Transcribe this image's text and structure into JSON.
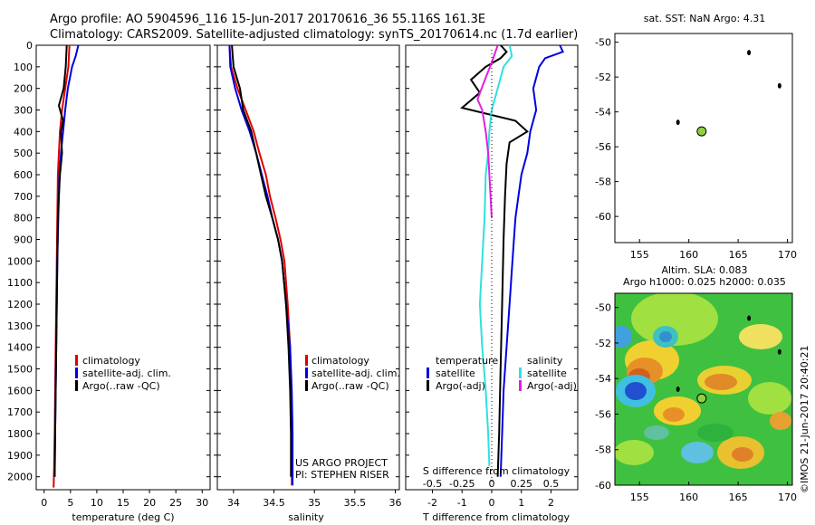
{
  "header": {
    "line1": "Argo profile: AO 5904596_116 15-Jun-2017 20170616_36 55.116S 161.3E",
    "line2": "Climatology: CARS2009. Satellite-adjusted climatology: synTS_20170614.nc (1.7d earlier)"
  },
  "colors": {
    "climatology": "#e00000",
    "satellite": "#0000e0",
    "argo": "#000000",
    "sal_satellite": "#30e0e0",
    "sal_argo": "#e020e0",
    "float_marker": "#90d040"
  },
  "depth_ticks": [
    0,
    100,
    200,
    300,
    400,
    500,
    600,
    700,
    800,
    900,
    1000,
    1100,
    1200,
    1300,
    1400,
    1500,
    1600,
    1700,
    1800,
    1900,
    2000
  ],
  "chart_data": [
    {
      "type": "line",
      "id": "temperature",
      "xlabel": "temperature (deg C)",
      "xlim": [
        -1.5,
        31.5
      ],
      "xticks": [
        0,
        5,
        10,
        15,
        20,
        25,
        30
      ],
      "ylim": [
        0,
        2060
      ],
      "y_inverted": true,
      "legend": [
        "climatology",
        "satellite-adj. clim.",
        "Argo(..raw -QC)"
      ],
      "series": [
        {
          "name": "climatology",
          "color": "#e00000",
          "x": [
            4.8,
            4.6,
            4.0,
            3.4,
            3.0,
            2.8,
            2.6,
            2.5,
            2.4,
            2.3,
            2.2,
            2.1,
            2.0,
            1.9,
            1.8
          ],
          "y": [
            0,
            100,
            200,
            300,
            400,
            500,
            600,
            800,
            1000,
            1200,
            1400,
            1600,
            1800,
            1950,
            2050
          ]
        },
        {
          "name": "satellite-adj. clim.",
          "color": "#0000e0",
          "x": [
            6.5,
            6.0,
            5.3,
            4.5,
            4.0,
            3.6,
            3.2,
            2.9,
            2.7,
            2.5,
            2.4,
            2.3,
            2.2,
            2.1,
            2.0
          ],
          "y": [
            0,
            50,
            100,
            200,
            300,
            400,
            500,
            600,
            800,
            1000,
            1200,
            1400,
            1600,
            1800,
            2000
          ]
        },
        {
          "name": "Argo(..raw -QC)",
          "color": "#000000",
          "x": [
            4.3,
            4.1,
            3.7,
            2.8,
            3.6,
            3.2,
            3.4,
            3.0,
            2.8,
            2.6,
            2.5,
            2.4,
            2.3,
            2.2,
            2.1,
            2.0
          ],
          "y": [
            0,
            100,
            200,
            280,
            350,
            400,
            500,
            600,
            700,
            800,
            1000,
            1200,
            1400,
            1600,
            1800,
            2000
          ]
        }
      ]
    },
    {
      "type": "line",
      "id": "salinity",
      "xlabel": "salinity",
      "xlim": [
        33.8,
        36.05
      ],
      "xticks": [
        34,
        34.5,
        35,
        35.5,
        36
      ],
      "ylim": [
        0,
        2060
      ],
      "y_inverted": true,
      "legend": [
        "climatology",
        "satellite-adj. clim.",
        "Argo(..raw -QC)"
      ],
      "annotation": [
        "US ARGO PROJECT",
        "PI: STEPHEN RISER"
      ],
      "series": [
        {
          "name": "climatology",
          "color": "#e00000",
          "x": [
            33.95,
            33.97,
            34.05,
            34.15,
            34.25,
            34.32,
            34.4,
            34.45,
            34.52,
            34.58,
            34.63,
            34.67,
            34.7,
            34.71,
            34.72,
            34.72
          ],
          "y": [
            0,
            100,
            200,
            300,
            400,
            500,
            600,
            700,
            800,
            900,
            1000,
            1200,
            1400,
            1600,
            1800,
            2040
          ]
        },
        {
          "name": "satellite-adj. clim.",
          "color": "#0000e0",
          "x": [
            33.95,
            33.96,
            34.02,
            34.1,
            34.2,
            34.28,
            34.35,
            34.42,
            34.48,
            34.55,
            34.6,
            34.65,
            34.7,
            34.72,
            34.73,
            34.73
          ],
          "y": [
            0,
            100,
            200,
            300,
            400,
            500,
            600,
            700,
            800,
            900,
            1000,
            1200,
            1400,
            1600,
            1800,
            2040
          ]
        },
        {
          "name": "Argo(..raw -QC)",
          "color": "#000000",
          "x": [
            33.98,
            34.0,
            34.08,
            34.12,
            34.22,
            34.28,
            34.34,
            34.4,
            34.48,
            34.55,
            34.6,
            34.65,
            34.68,
            34.7,
            34.71,
            34.71
          ],
          "y": [
            0,
            100,
            200,
            300,
            400,
            500,
            600,
            700,
            800,
            900,
            1000,
            1200,
            1400,
            1600,
            1800,
            2000
          ]
        }
      ]
    },
    {
      "type": "line",
      "id": "difference",
      "xlabel_bottom": "T difference from climatology",
      "xlabel_top": "S difference from climatology",
      "t_xlim": [
        -2.9,
        2.9
      ],
      "t_xticks": [
        -2,
        -1,
        0,
        1,
        2
      ],
      "s_xticks": [
        -0.5,
        -0.25,
        0,
        0.25,
        0.5
      ],
      "s_to_t_scale": 4,
      "ylim": [
        0,
        2060
      ],
      "y_inverted": true,
      "legend_titles": [
        "temperature",
        "salinity"
      ],
      "legend_temperature": [
        "satellite",
        "Argo(-adj)"
      ],
      "legend_salinity": [
        "satellite",
        "Argo(-adj)"
      ],
      "series": [
        {
          "name": "temperature satellite",
          "color": "#0000e0",
          "axis": "T",
          "x": [
            2.3,
            2.4,
            1.8,
            1.6,
            1.4,
            1.5,
            1.3,
            1.2,
            1.0,
            0.9,
            0.8,
            0.7,
            0.6,
            0.5,
            0.4,
            0.35,
            0.3
          ],
          "y": [
            0,
            30,
            60,
            100,
            200,
            300,
            400,
            500,
            600,
            700,
            800,
            1000,
            1200,
            1400,
            1600,
            1800,
            2000
          ]
        },
        {
          "name": "temperature Argo(-adj)",
          "color": "#000000",
          "axis": "T",
          "x": [
            0.3,
            0.5,
            0.3,
            -0.2,
            -0.7,
            -0.4,
            -1.0,
            0.8,
            1.2,
            0.6,
            0.5,
            0.45,
            0.4,
            0.35,
            0.3,
            0.25,
            0.2
          ],
          "y": [
            0,
            30,
            60,
            100,
            160,
            220,
            290,
            350,
            400,
            450,
            550,
            700,
            900,
            1200,
            1500,
            1800,
            2000
          ]
        },
        {
          "name": "salinity satellite",
          "color": "#30e0e0",
          "axis": "S",
          "x": [
            0.15,
            0.17,
            0.1,
            0.05,
            0.0,
            -0.02,
            -0.03,
            -0.05,
            -0.06,
            -0.08,
            -0.1,
            -0.08,
            -0.05,
            -0.03,
            -0.02
          ],
          "y": [
            0,
            50,
            100,
            200,
            300,
            400,
            500,
            600,
            800,
            1000,
            1200,
            1400,
            1600,
            1800,
            1950
          ]
        },
        {
          "name": "salinity Argo(-adj)",
          "color": "#e020e0",
          "axis": "S",
          "x": [
            0.05,
            0.0,
            -0.05,
            -0.12,
            -0.08,
            -0.05,
            -0.03,
            -0.02,
            -0.01,
            0.0
          ],
          "y": [
            0,
            80,
            150,
            250,
            300,
            400,
            500,
            600,
            700,
            800
          ]
        }
      ]
    },
    {
      "type": "scatter",
      "id": "map_sst",
      "title": "sat. SST: NaN Argo: 4.31",
      "xlim": [
        152.5,
        170.5
      ],
      "ylim": [
        -61.5,
        -49.5
      ],
      "xticks": [
        155,
        160,
        165,
        170
      ],
      "yticks": [
        -50,
        -52,
        -54,
        -56,
        -58,
        -60
      ],
      "float_position": {
        "lon": 161.3,
        "lat": -55.116
      },
      "land_specks": [
        {
          "lon": 166.1,
          "lat": -50.6
        },
        {
          "lon": 169.2,
          "lat": -52.5
        },
        {
          "lon": 158.9,
          "lat": -54.6
        }
      ]
    },
    {
      "type": "heatmap",
      "id": "map_sla",
      "title": [
        "Altim. SLA: 0.083",
        "Argo h1000: 0.025 h2000: 0.035"
      ],
      "xlim": [
        152.5,
        170.5
      ],
      "ylim": [
        -60.0,
        -49.2
      ],
      "xticks": [
        155,
        160,
        165,
        170
      ],
      "yticks": [
        -50,
        -52,
        -54,
        -56,
        -58,
        -60
      ],
      "float_position": {
        "lon": 161.3,
        "lat": -55.116
      },
      "land_specks": [
        {
          "lon": 166.1,
          "lat": -50.6
        },
        {
          "lon": 169.2,
          "lat": -52.5
        },
        {
          "lon": 158.9,
          "lat": -54.6
        }
      ]
    }
  ],
  "credit": "©IMOS 21-Jun-2017 20:40:21"
}
